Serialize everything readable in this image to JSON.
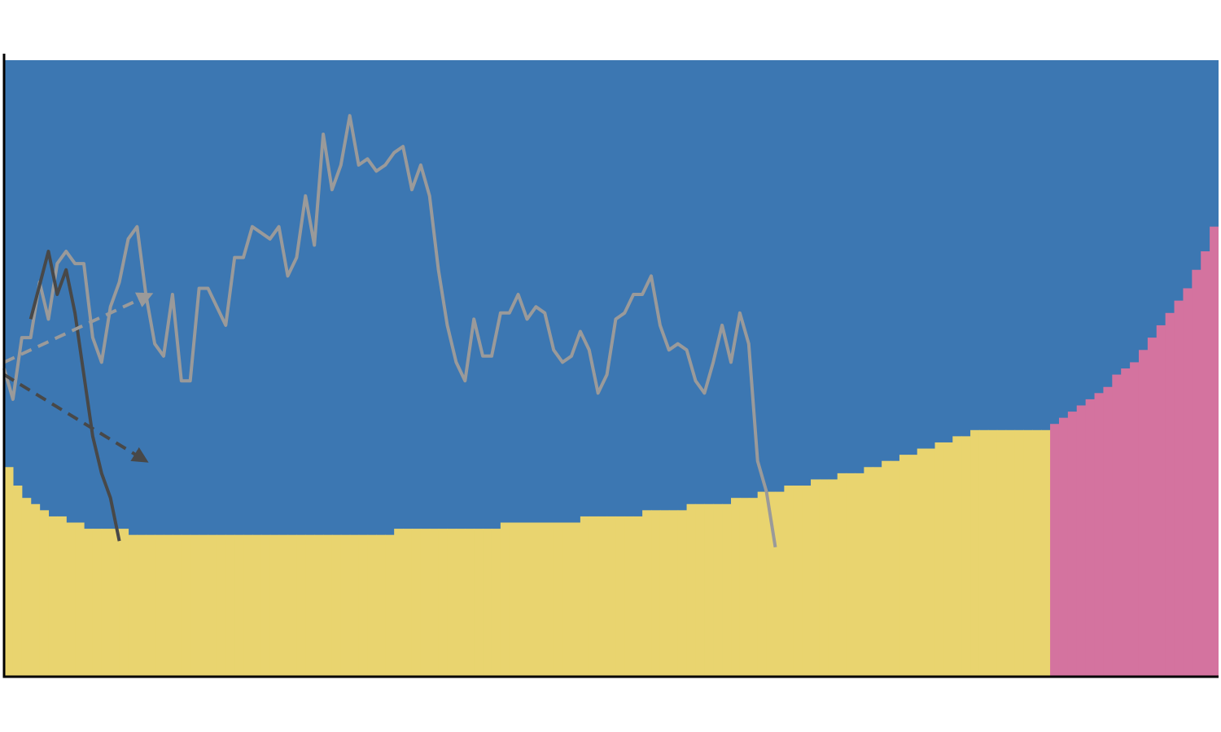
{
  "chart_data": {
    "type": "area",
    "title": "",
    "xlabel": "",
    "ylabel": "",
    "xlim": [
      0,
      137
    ],
    "ylim": [
      0,
      1
    ],
    "grid": false,
    "legend": "none",
    "colors": {
      "yellow": "#e9d46f",
      "blue": "#3c77b2",
      "pink": "#d4739f",
      "light_line": "#9a9a9a",
      "dark_line": "#484848",
      "axis": "#000000"
    },
    "areas": {
      "yellow_top": [
        0.34,
        0.31,
        0.29,
        0.28,
        0.27,
        0.26,
        0.26,
        0.25,
        0.25,
        0.24,
        0.24,
        0.24,
        0.24,
        0.24,
        0.23,
        0.23,
        0.23,
        0.23,
        0.23,
        0.23,
        0.23,
        0.23,
        0.23,
        0.23,
        0.23,
        0.23,
        0.23,
        0.23,
        0.23,
        0.23,
        0.23,
        0.23,
        0.23,
        0.23,
        0.23,
        0.23,
        0.23,
        0.23,
        0.23,
        0.23,
        0.23,
        0.23,
        0.23,
        0.23,
        0.24,
        0.24,
        0.24,
        0.24,
        0.24,
        0.24,
        0.24,
        0.24,
        0.24,
        0.24,
        0.24,
        0.24,
        0.25,
        0.25,
        0.25,
        0.25,
        0.25,
        0.25,
        0.25,
        0.25,
        0.25,
        0.26,
        0.26,
        0.26,
        0.26,
        0.26,
        0.26,
        0.26,
        0.27,
        0.27,
        0.27,
        0.27,
        0.27,
        0.28,
        0.28,
        0.28,
        0.28,
        0.28,
        0.29,
        0.29,
        0.29,
        0.3,
        0.3,
        0.3,
        0.31,
        0.31,
        0.31,
        0.32,
        0.32,
        0.32,
        0.33,
        0.33,
        0.33,
        0.34,
        0.34,
        0.35,
        0.35,
        0.36,
        0.36,
        0.37,
        0.37,
        0.38,
        0.38,
        0.39,
        0.39,
        0.4,
        0.4,
        0.4,
        0.4,
        0.4,
        0.4,
        0.4,
        0.4,
        0.4
      ],
      "pink_start_index": 118,
      "pink_top": [
        0.41,
        0.42,
        0.43,
        0.44,
        0.45,
        0.46,
        0.47,
        0.49,
        0.5,
        0.51,
        0.53,
        0.55,
        0.57,
        0.59,
        0.61,
        0.63,
        0.66,
        0.69,
        0.73,
        0.77,
        0.81
      ]
    },
    "series": [
      {
        "style": "solid-light",
        "x": [
          0,
          1,
          2,
          3,
          4,
          5,
          6,
          7,
          8,
          9,
          10,
          11,
          12,
          13,
          14,
          15,
          16,
          17,
          18,
          19,
          20,
          21,
          22,
          23,
          24,
          25,
          26,
          27,
          28,
          29,
          30,
          31,
          32,
          33,
          34,
          35,
          36,
          37,
          38,
          39,
          40,
          41,
          42,
          43,
          44,
          45,
          46,
          47,
          48,
          49,
          50,
          51,
          52,
          53,
          54,
          55,
          56,
          57,
          58,
          59,
          60,
          61,
          62,
          63,
          64,
          65,
          66,
          67,
          68,
          69,
          70,
          71,
          72,
          73,
          74,
          75,
          76,
          77,
          78,
          79,
          80,
          81,
          82,
          83,
          84,
          85,
          86
        ],
        "y": [
          0.5,
          0.45,
          0.55,
          0.55,
          0.64,
          0.58,
          0.67,
          0.69,
          0.67,
          0.67,
          0.55,
          0.51,
          0.6,
          0.64,
          0.71,
          0.73,
          0.62,
          0.54,
          0.52,
          0.62,
          0.48,
          0.48,
          0.63,
          0.63,
          0.6,
          0.57,
          0.68,
          0.68,
          0.73,
          0.72,
          0.71,
          0.73,
          0.65,
          0.68,
          0.78,
          0.7,
          0.88,
          0.79,
          0.83,
          0.91,
          0.83,
          0.84,
          0.82,
          0.83,
          0.85,
          0.86,
          0.79,
          0.83,
          0.78,
          0.66,
          0.57,
          0.51,
          0.48,
          0.58,
          0.52,
          0.52,
          0.59,
          0.59,
          0.62,
          0.58,
          0.6,
          0.59,
          0.53,
          0.51,
          0.52,
          0.56,
          0.53,
          0.46,
          0.49,
          0.58,
          0.59,
          0.62,
          0.62,
          0.65,
          0.57,
          0.53,
          0.54,
          0.53,
          0.48,
          0.46,
          0.51,
          0.57,
          0.51,
          0.59,
          0.54,
          0.35,
          0.3
        ]
      },
      {
        "style": "solid-light-tail",
        "x": [
          86,
          87
        ],
        "y": [
          0.3,
          0.21
        ]
      },
      {
        "style": "solid-dark",
        "x": [
          3,
          5,
          6,
          7,
          8,
          9,
          10,
          11,
          12,
          13
        ],
        "y": [
          0.58,
          0.69,
          0.62,
          0.66,
          0.59,
          0.49,
          0.39,
          0.33,
          0.29,
          0.22
        ]
      },
      {
        "style": "dashed-light-arrow",
        "x": [
          0,
          16.5
        ],
        "y": [
          0.51,
          0.62
        ]
      },
      {
        "style": "dashed-dark-arrow",
        "x": [
          0,
          16
        ],
        "y": [
          0.49,
          0.35
        ]
      }
    ]
  }
}
